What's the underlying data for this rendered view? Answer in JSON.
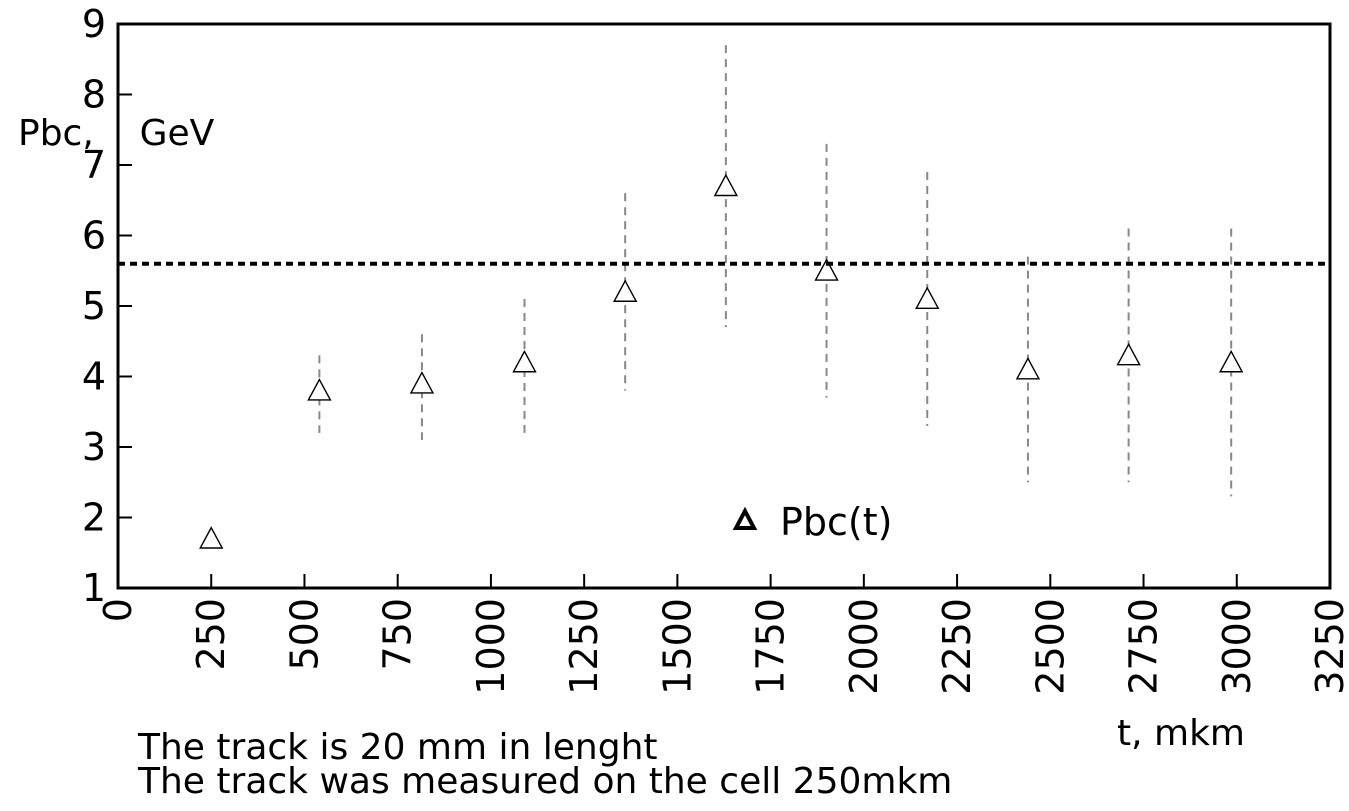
{
  "chart_data": {
    "type": "scatter",
    "xlim": [
      0,
      3250
    ],
    "ylim": [
      1,
      9
    ],
    "x_ticks": [
      "0",
      "250",
      "500",
      "750",
      "1000",
      "1250",
      "1500",
      "1750",
      "2000",
      "2250",
      "2500",
      "2750",
      "3000",
      "3250"
    ],
    "y_ticks": [
      "1",
      "2",
      "3",
      "4",
      "5",
      "6",
      "7",
      "8",
      "9"
    ],
    "ylabel": "Pbc,    GeV",
    "xlabel": "t, mkm",
    "reference_line": {
      "y": 5.6,
      "style": "dashed"
    },
    "legend": {
      "label": "Pbc(t)",
      "marker": "triangle",
      "placement": "lower-center"
    },
    "grid": false,
    "series": [
      {
        "name": "Pbc(t)",
        "marker": "open-triangle",
        "points": [
          {
            "x": 250,
            "y": 1.7,
            "err_low": null,
            "err_high": null
          },
          {
            "x": 540,
            "y": 3.8,
            "err_low": 3.2,
            "err_high": 4.3
          },
          {
            "x": 815,
            "y": 3.9,
            "err_low": 3.1,
            "err_high": 4.6
          },
          {
            "x": 1090,
            "y": 4.2,
            "err_low": 3.2,
            "err_high": 5.1
          },
          {
            "x": 1360,
            "y": 5.2,
            "err_low": 3.8,
            "err_high": 6.6
          },
          {
            "x": 1630,
            "y": 6.7,
            "err_low": 4.7,
            "err_high": 8.7
          },
          {
            "x": 1900,
            "y": 5.5,
            "err_low": 3.7,
            "err_high": 7.3
          },
          {
            "x": 2170,
            "y": 5.1,
            "err_low": 3.3,
            "err_high": 6.9
          },
          {
            "x": 2440,
            "y": 4.1,
            "err_low": 2.5,
            "err_high": 5.7
          },
          {
            "x": 2710,
            "y": 4.3,
            "err_low": 2.5,
            "err_high": 6.1
          },
          {
            "x": 2985,
            "y": 4.2,
            "err_low": 2.3,
            "err_high": 6.1
          }
        ]
      }
    ]
  },
  "notes": [
    "The track is 20 mm in lenght",
    "The track was measured on the cell 250mkm"
  ]
}
